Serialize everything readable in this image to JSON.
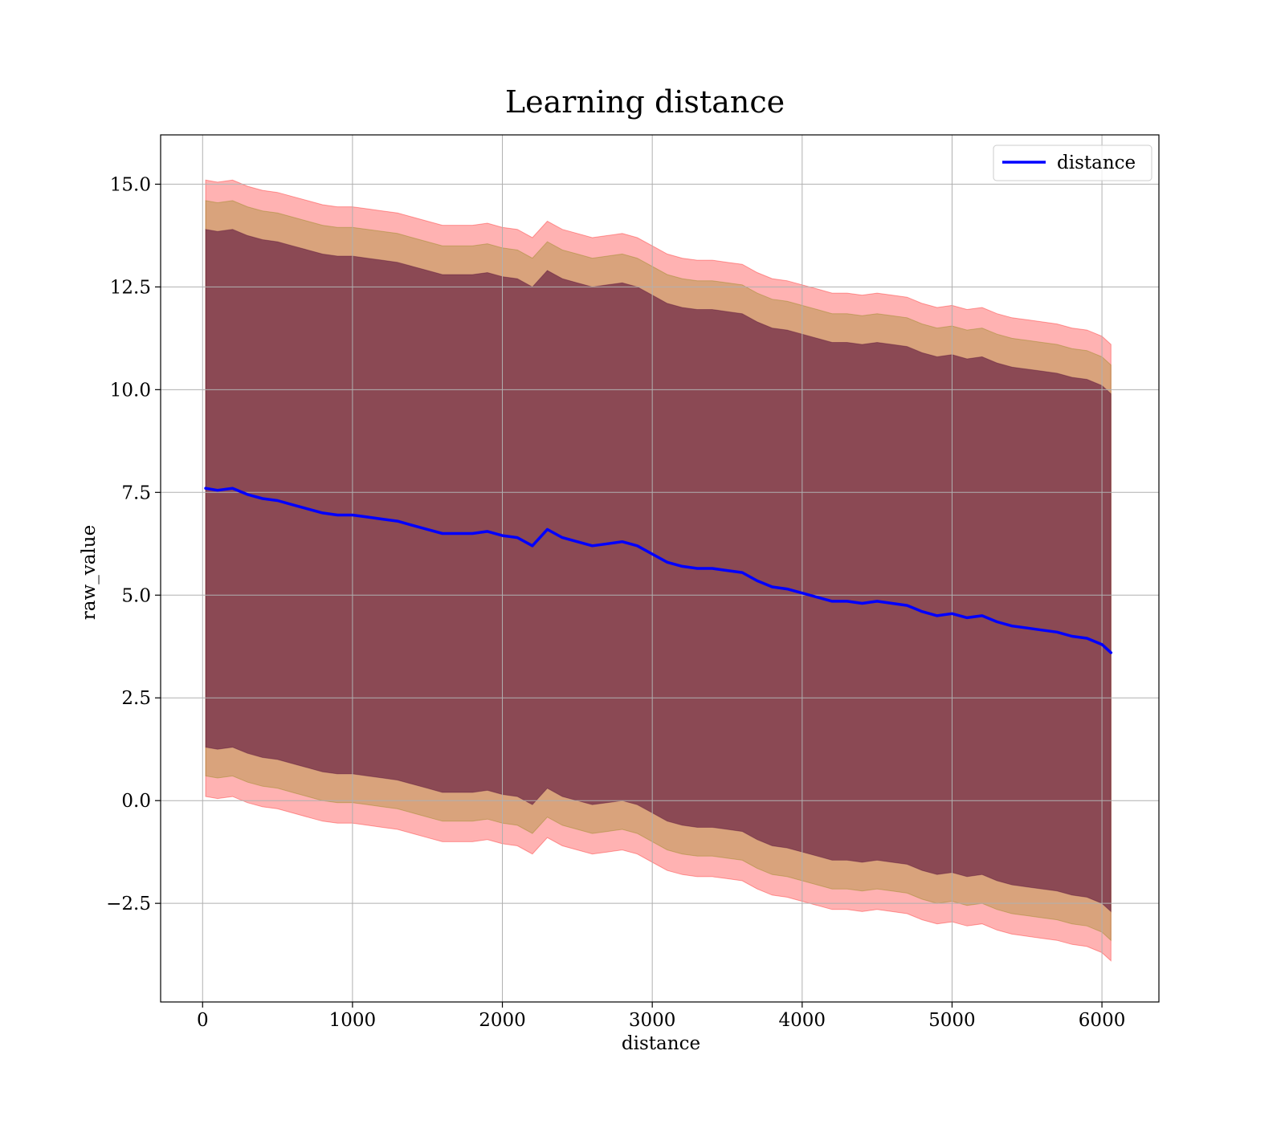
{
  "chart_data": {
    "type": "area",
    "title": "Learning distance",
    "xlabel": "distance",
    "ylabel": "raw_value",
    "xlim": [
      -280,
      6380
    ],
    "ylim": [
      -4.9,
      16.2
    ],
    "grid": true,
    "legend_position": "top-right",
    "x_ticks": [
      0,
      1000,
      2000,
      3000,
      4000,
      5000,
      6000
    ],
    "x_tick_labels": [
      "0",
      "1000",
      "2000",
      "3000",
      "4000",
      "5000",
      "6000"
    ],
    "y_ticks": [
      -2.5,
      0.0,
      2.5,
      5.0,
      7.5,
      10.0,
      12.5,
      15.0
    ],
    "y_tick_labels": [
      "−2.5",
      "0.0",
      "2.5",
      "5.0",
      "7.5",
      "10.0",
      "12.5",
      "15.0"
    ],
    "series": [
      {
        "name": "distance",
        "color": "#0000ff",
        "x": [
          20,
          100,
          200,
          300,
          400,
          500,
          600,
          700,
          800,
          900,
          1000,
          1100,
          1200,
          1300,
          1400,
          1500,
          1600,
          1700,
          1800,
          1900,
          2000,
          2100,
          2200,
          2300,
          2400,
          2500,
          2600,
          2700,
          2800,
          2900,
          3000,
          3100,
          3200,
          3300,
          3400,
          3500,
          3600,
          3700,
          3800,
          3900,
          4000,
          4100,
          4200,
          4300,
          4400,
          4500,
          4600,
          4700,
          4800,
          4900,
          5000,
          5100,
          5200,
          5300,
          5400,
          5500,
          5600,
          5700,
          5800,
          5900,
          6000,
          6060
        ],
        "values": [
          7.6,
          7.55,
          7.6,
          7.45,
          7.35,
          7.3,
          7.2,
          7.1,
          7.0,
          6.95,
          6.95,
          6.9,
          6.85,
          6.8,
          6.7,
          6.6,
          6.5,
          6.5,
          6.5,
          6.55,
          6.45,
          6.4,
          6.2,
          6.6,
          6.4,
          6.3,
          6.2,
          6.25,
          6.3,
          6.2,
          6.0,
          5.8,
          5.7,
          5.65,
          5.65,
          5.6,
          5.55,
          5.35,
          5.2,
          5.15,
          5.05,
          4.95,
          4.85,
          4.85,
          4.8,
          4.85,
          4.8,
          4.75,
          4.6,
          4.5,
          4.55,
          4.45,
          4.5,
          4.35,
          4.25,
          4.2,
          4.15,
          4.1,
          4.0,
          3.95,
          3.8,
          3.6
        ]
      }
    ],
    "bands": [
      {
        "color": "#ff0000",
        "opacity": 0.3,
        "upper": [
          15.1,
          15.05,
          15.1,
          14.95,
          14.85,
          14.8,
          14.7,
          14.6,
          14.5,
          14.45,
          14.45,
          14.4,
          14.35,
          14.3,
          14.2,
          14.1,
          14.0,
          14.0,
          14.0,
          14.05,
          13.95,
          13.9,
          13.7,
          14.1,
          13.9,
          13.8,
          13.7,
          13.75,
          13.8,
          13.7,
          13.5,
          13.3,
          13.2,
          13.15,
          13.15,
          13.1,
          13.05,
          12.85,
          12.7,
          12.65,
          12.55,
          12.45,
          12.35,
          12.35,
          12.3,
          12.35,
          12.3,
          12.25,
          12.1,
          12.0,
          12.05,
          11.95,
          12.0,
          11.85,
          11.75,
          11.7,
          11.65,
          11.6,
          11.5,
          11.45,
          11.3,
          11.1
        ],
        "lower": [
          0.1,
          0.05,
          0.1,
          -0.05,
          -0.15,
          -0.2,
          -0.3,
          -0.4,
          -0.5,
          -0.55,
          -0.55,
          -0.6,
          -0.65,
          -0.7,
          -0.8,
          -0.9,
          -1.0,
          -1.0,
          -1.0,
          -0.95,
          -1.05,
          -1.1,
          -1.3,
          -0.9,
          -1.1,
          -1.2,
          -1.3,
          -1.25,
          -1.2,
          -1.3,
          -1.5,
          -1.7,
          -1.8,
          -1.85,
          -1.85,
          -1.9,
          -1.95,
          -2.15,
          -2.3,
          -2.35,
          -2.45,
          -2.55,
          -2.65,
          -2.65,
          -2.7,
          -2.65,
          -2.7,
          -2.75,
          -2.9,
          -3.0,
          -2.95,
          -3.05,
          -3.0,
          -3.15,
          -3.25,
          -3.3,
          -3.35,
          -3.4,
          -3.5,
          -3.55,
          -3.7,
          -3.9
        ]
      },
      {
        "color": "#808000",
        "opacity": 0.3,
        "upper": [
          14.6,
          14.55,
          14.6,
          14.45,
          14.35,
          14.3,
          14.2,
          14.1,
          14.0,
          13.95,
          13.95,
          13.9,
          13.85,
          13.8,
          13.7,
          13.6,
          13.5,
          13.5,
          13.5,
          13.55,
          13.45,
          13.4,
          13.2,
          13.6,
          13.4,
          13.3,
          13.2,
          13.25,
          13.3,
          13.2,
          13.0,
          12.8,
          12.7,
          12.65,
          12.65,
          12.6,
          12.55,
          12.35,
          12.2,
          12.15,
          12.05,
          11.95,
          11.85,
          11.85,
          11.8,
          11.85,
          11.8,
          11.75,
          11.6,
          11.5,
          11.55,
          11.45,
          11.5,
          11.35,
          11.25,
          11.2,
          11.15,
          11.1,
          11.0,
          10.95,
          10.8,
          10.6
        ],
        "lower": [
          0.6,
          0.55,
          0.6,
          0.45,
          0.35,
          0.3,
          0.2,
          0.1,
          0.0,
          -0.05,
          -0.05,
          -0.1,
          -0.15,
          -0.2,
          -0.3,
          -0.4,
          -0.5,
          -0.5,
          -0.5,
          -0.45,
          -0.55,
          -0.6,
          -0.8,
          -0.4,
          -0.6,
          -0.7,
          -0.8,
          -0.75,
          -0.7,
          -0.8,
          -1.0,
          -1.2,
          -1.3,
          -1.35,
          -1.35,
          -1.4,
          -1.45,
          -1.65,
          -1.8,
          -1.85,
          -1.95,
          -2.05,
          -2.15,
          -2.15,
          -2.2,
          -2.15,
          -2.2,
          -2.25,
          -2.4,
          -2.5,
          -2.45,
          -2.55,
          -2.5,
          -2.65,
          -2.75,
          -2.8,
          -2.85,
          -2.9,
          -3.0,
          -3.05,
          -3.2,
          -3.4
        ]
      },
      {
        "color": "#4b0033",
        "opacity": 0.55,
        "upper": [
          13.9,
          13.85,
          13.9,
          13.75,
          13.65,
          13.6,
          13.5,
          13.4,
          13.3,
          13.25,
          13.25,
          13.2,
          13.15,
          13.1,
          13.0,
          12.9,
          12.8,
          12.8,
          12.8,
          12.85,
          12.75,
          12.7,
          12.5,
          12.9,
          12.7,
          12.6,
          12.5,
          12.55,
          12.6,
          12.5,
          12.3,
          12.1,
          12.0,
          11.95,
          11.95,
          11.9,
          11.85,
          11.65,
          11.5,
          11.45,
          11.35,
          11.25,
          11.15,
          11.15,
          11.1,
          11.15,
          11.1,
          11.05,
          10.9,
          10.8,
          10.85,
          10.75,
          10.8,
          10.65,
          10.55,
          10.5,
          10.45,
          10.4,
          10.3,
          10.25,
          10.1,
          9.9
        ],
        "lower": [
          1.3,
          1.25,
          1.3,
          1.15,
          1.05,
          1.0,
          0.9,
          0.8,
          0.7,
          0.65,
          0.65,
          0.6,
          0.55,
          0.5,
          0.4,
          0.3,
          0.2,
          0.2,
          0.2,
          0.25,
          0.15,
          0.1,
          -0.1,
          0.3,
          0.1,
          0.0,
          -0.1,
          -0.05,
          0.0,
          -0.1,
          -0.3,
          -0.5,
          -0.6,
          -0.65,
          -0.65,
          -0.7,
          -0.75,
          -0.95,
          -1.1,
          -1.15,
          -1.25,
          -1.35,
          -1.45,
          -1.45,
          -1.5,
          -1.45,
          -1.5,
          -1.55,
          -1.7,
          -1.8,
          -1.75,
          -1.85,
          -1.8,
          -1.95,
          -2.05,
          -2.1,
          -2.15,
          -2.2,
          -2.3,
          -2.35,
          -2.5,
          -2.7
        ]
      }
    ]
  }
}
